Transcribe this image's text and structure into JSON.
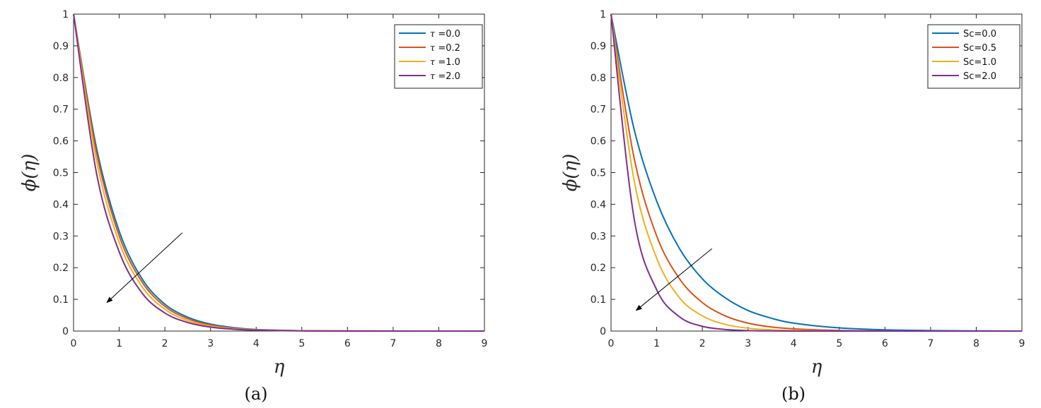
{
  "chart_data": [
    {
      "type": "line",
      "caption": "(a)",
      "xlabel": "η",
      "ylabel": "ϕ(η)",
      "xlim": [
        0,
        9
      ],
      "ylim": [
        0,
        1
      ],
      "xticks": [
        "0",
        "1",
        "2",
        "3",
        "4",
        "5",
        "6",
        "7",
        "8",
        "9"
      ],
      "yticks": [
        "0",
        "0.1",
        "0.2",
        "0.3",
        "0.4",
        "0.5",
        "0.6",
        "0.7",
        "0.8",
        "0.9",
        "1"
      ],
      "grid": false,
      "legend_position": "top-right",
      "arrow": {
        "from": [
          2.38,
          0.31
        ],
        "to": [
          0.73,
          0.09
        ]
      },
      "x": [
        0,
        0.5,
        1,
        1.5,
        2,
        2.5,
        3,
        3.5,
        4,
        5,
        6,
        9
      ],
      "series": [
        {
          "symbol": "τ",
          "value_text": " =0.0",
          "color": "#0072BD",
          "values": [
            1.0,
            0.58,
            0.315,
            0.165,
            0.085,
            0.044,
            0.022,
            0.011,
            0.005,
            0.0012,
            0.0003,
            0.0
          ]
        },
        {
          "symbol": "τ",
          "value_text": " =0.2",
          "color": "#D95319",
          "values": [
            1.0,
            0.565,
            0.3,
            0.155,
            0.078,
            0.039,
            0.019,
            0.009,
            0.004,
            0.001,
            0.0002,
            0.0
          ]
        },
        {
          "symbol": "τ",
          "value_text": " =1.0",
          "color": "#EDB120",
          "values": [
            1.0,
            0.54,
            0.28,
            0.14,
            0.069,
            0.033,
            0.016,
            0.0075,
            0.0035,
            0.0008,
            0.0002,
            0.0
          ]
        },
        {
          "symbol": "τ",
          "value_text": " =2.0",
          "color": "#7E2F8E",
          "values": [
            1.0,
            0.5,
            0.25,
            0.12,
            0.057,
            0.027,
            0.0125,
            0.0058,
            0.0027,
            0.0006,
            0.0001,
            0.0
          ]
        }
      ]
    },
    {
      "type": "line",
      "caption": "(b)",
      "xlabel": "η",
      "ylabel": "ϕ(η)",
      "xlim": [
        0,
        9
      ],
      "ylim": [
        0,
        1
      ],
      "xticks": [
        "0",
        "1",
        "2",
        "3",
        "4",
        "5",
        "6",
        "7",
        "8",
        "9"
      ],
      "yticks": [
        "0",
        "0.1",
        "0.2",
        "0.3",
        "0.4",
        "0.5",
        "0.6",
        "0.7",
        "0.8",
        "0.9",
        "1"
      ],
      "grid": false,
      "legend_position": "top-right",
      "arrow": {
        "from": [
          2.21,
          0.26
        ],
        "to": [
          0.55,
          0.065
        ]
      },
      "x": [
        0,
        0.5,
        1,
        1.5,
        2,
        2.5,
        3,
        3.5,
        4,
        5,
        6,
        7,
        9
      ],
      "series": [
        {
          "symbol": "",
          "value_text": "Sc=0.0",
          "color": "#0072BD",
          "values": [
            1.0,
            0.64,
            0.41,
            0.26,
            0.165,
            0.105,
            0.065,
            0.041,
            0.025,
            0.01,
            0.004,
            0.0015,
            0.0
          ]
        },
        {
          "symbol": "",
          "value_text": "Sc=0.5",
          "color": "#D95319",
          "values": [
            1.0,
            0.55,
            0.3,
            0.165,
            0.09,
            0.048,
            0.025,
            0.013,
            0.007,
            0.002,
            0.0005,
            0.0001,
            0.0
          ]
        },
        {
          "symbol": "",
          "value_text": "Sc=1.0",
          "color": "#EDB120",
          "values": [
            1.0,
            0.48,
            0.23,
            0.105,
            0.048,
            0.021,
            0.009,
            0.004,
            0.0017,
            0.0003,
            0.0,
            0.0,
            0.0
          ]
        },
        {
          "symbol": "",
          "value_text": "Sc=2.0",
          "color": "#7E2F8E",
          "values": [
            1.0,
            0.36,
            0.13,
            0.045,
            0.015,
            0.005,
            0.0015,
            0.0005,
            0.0001,
            0.0,
            0.0,
            0.0,
            0.0
          ]
        }
      ]
    }
  ]
}
